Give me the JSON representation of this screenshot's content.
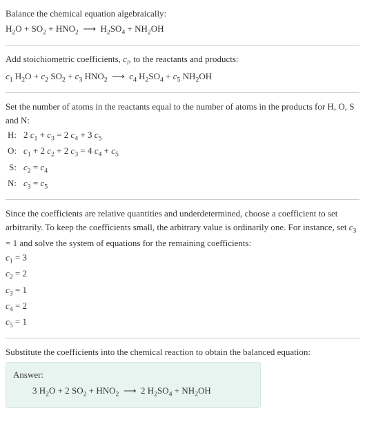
{
  "colors": {
    "text": "#333333",
    "background": "#ffffff",
    "hr": "#cccccc",
    "answer_bg": "#e8f4f0",
    "answer_border": "#d0e8e0"
  },
  "intro": {
    "line1": "Balance the chemical equation algebraically:",
    "eq_html": "H<sub>2</sub>O + SO<sub>2</sub> + HNO<sub>2</sub> &nbsp;⟶&nbsp; H<sub>2</sub>SO<sub>4</sub> + NH<sub>2</sub>OH"
  },
  "stoich": {
    "line1_html": "Add stoichiometric coefficients, <span class=\"italic\">c<sub>i</sub></span>, to the reactants and products:",
    "eq_html": "<span class=\"italic\">c</span><sub>1</sub> H<sub>2</sub>O + <span class=\"italic\">c</span><sub>2</sub> SO<sub>2</sub> + <span class=\"italic\">c</span><sub>3</sub> HNO<sub>2</sub> &nbsp;⟶&nbsp; <span class=\"italic\">c</span><sub>4</sub> H<sub>2</sub>SO<sub>4</sub> + <span class=\"italic\">c</span><sub>5</sub> NH<sub>2</sub>OH"
  },
  "atoms": {
    "intro": "Set the number of atoms in the reactants equal to the number of atoms in the products for H, O, S and N:",
    "rows": [
      {
        "label": "H:",
        "eq_html": "2 <span class=\"italic\">c</span><sub>1</sub> + <span class=\"italic\">c</span><sub>3</sub> = 2 <span class=\"italic\">c</span><sub>4</sub> + 3 <span class=\"italic\">c</span><sub>5</sub>"
      },
      {
        "label": "O:",
        "eq_html": "<span class=\"italic\">c</span><sub>1</sub> + 2 <span class=\"italic\">c</span><sub>2</sub> + 2 <span class=\"italic\">c</span><sub>3</sub> = 4 <span class=\"italic\">c</span><sub>4</sub> + <span class=\"italic\">c</span><sub>5</sub>"
      },
      {
        "label": "S:",
        "eq_html": "<span class=\"italic\">c</span><sub>2</sub> = <span class=\"italic\">c</span><sub>4</sub>"
      },
      {
        "label": "N:",
        "eq_html": "<span class=\"italic\">c</span><sub>3</sub> = <span class=\"italic\">c</span><sub>5</sub>"
      }
    ]
  },
  "solve": {
    "intro_html": "Since the coefficients are relative quantities and underdetermined, choose a coefficient to set arbitrarily. To keep the coefficients small, the arbitrary value is ordinarily one. For instance, set <span class=\"italic\">c</span><sub>3</sub> = 1 and solve the system of equations for the remaining coefficients:",
    "coeffs": [
      {
        "html": "<span class=\"italic\">c</span><sub>1</sub> = 3"
      },
      {
        "html": "<span class=\"italic\">c</span><sub>2</sub> = 2"
      },
      {
        "html": "<span class=\"italic\">c</span><sub>3</sub> = 1"
      },
      {
        "html": "<span class=\"italic\">c</span><sub>4</sub> = 2"
      },
      {
        "html": "<span class=\"italic\">c</span><sub>5</sub> = 1"
      }
    ]
  },
  "substitute": {
    "text": "Substitute the coefficients into the chemical reaction to obtain the balanced equation:"
  },
  "answer": {
    "label": "Answer:",
    "eq_html": "3 H<sub>2</sub>O + 2 SO<sub>2</sub> + HNO<sub>2</sub> &nbsp;⟶&nbsp; 2 H<sub>2</sub>SO<sub>4</sub> + NH<sub>2</sub>OH"
  }
}
